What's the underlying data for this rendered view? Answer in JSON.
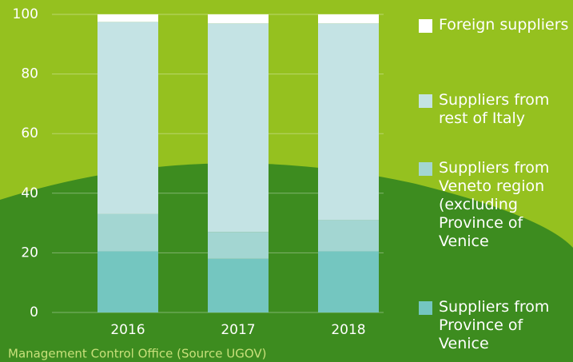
{
  "chart_data": {
    "type": "stacked_bar",
    "categories": [
      "2016",
      "2017",
      "2018"
    ],
    "series": [
      {
        "name": "Suppliers from Province of Venice",
        "color": "#74c6c0",
        "values": [
          20.5,
          18,
          20.5
        ]
      },
      {
        "name": "Suppliers from Veneto region (excluding Province of Venice",
        "color": "#a3d6d2",
        "values": [
          12.5,
          9,
          10.5
        ]
      },
      {
        "name": "Suppliers from rest of Italy",
        "color": "#c4e3e4",
        "values": [
          64.5,
          70,
          66
        ]
      },
      {
        "name": "Foreign suppliers",
        "color": "#ffffff",
        "values": [
          2.5,
          3,
          3
        ]
      }
    ],
    "ylim": [
      0,
      100
    ],
    "yticks": [
      0,
      20,
      40,
      60,
      80,
      100
    ],
    "grid": true,
    "legend": "right",
    "caption": "Management Control Office (Source UGOV)"
  }
}
